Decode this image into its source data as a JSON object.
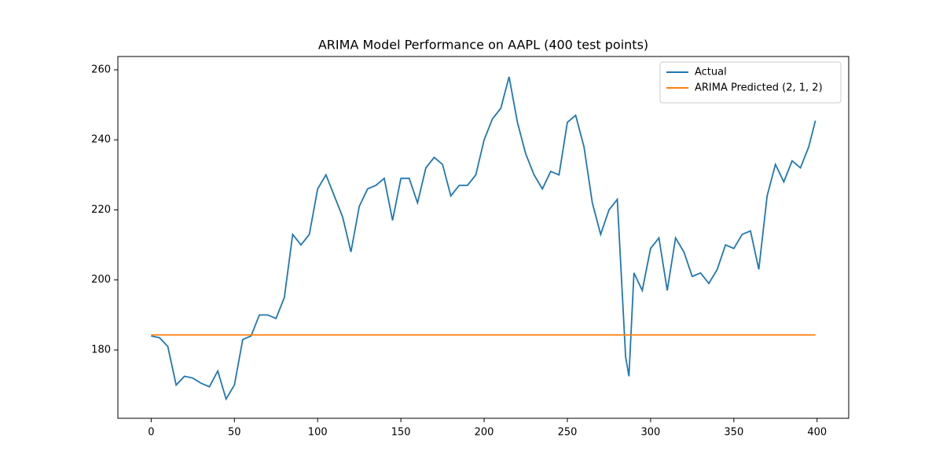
{
  "chart_data": {
    "type": "line",
    "title": "ARIMA Model Performance on AAPL (400 test points)",
    "series": [
      {
        "name": "Actual",
        "color": "#1f77b4",
        "x": [
          0,
          5,
          10,
          15,
          20,
          25,
          30,
          35,
          40,
          45,
          50,
          55,
          60,
          65,
          70,
          75,
          80,
          85,
          90,
          95,
          100,
          105,
          110,
          115,
          120,
          125,
          130,
          135,
          140,
          145,
          150,
          155,
          160,
          165,
          170,
          175,
          180,
          185,
          190,
          195,
          200,
          205,
          210,
          215,
          220,
          225,
          230,
          235,
          240,
          245,
          250,
          255,
          260,
          265,
          270,
          275,
          280,
          285,
          287,
          290,
          295,
          300,
          305,
          310,
          315,
          320,
          325,
          330,
          335,
          340,
          345,
          350,
          355,
          360,
          365,
          370,
          375,
          380,
          385,
          390,
          395,
          399
        ],
        "values": [
          184,
          183.5,
          181,
          170,
          172.5,
          172,
          170.5,
          169.5,
          174,
          166,
          170,
          183,
          184,
          190,
          190,
          189,
          195,
          213,
          210,
          213,
          226,
          230,
          224,
          218,
          208,
          221,
          226,
          227,
          229,
          217,
          229,
          229,
          222,
          232,
          235,
          233,
          224,
          227,
          227,
          230,
          240,
          246,
          249,
          258,
          245,
          236,
          230,
          226,
          231,
          230,
          245,
          247,
          238,
          222,
          213,
          220,
          223,
          178,
          172.5,
          202,
          197,
          209,
          212,
          197,
          212,
          208,
          201,
          202,
          199,
          203,
          210,
          209,
          213,
          214,
          203,
          224,
          233,
          228,
          234,
          232,
          238,
          245.5
        ]
      },
      {
        "name": "ARIMA Predicted (2, 1, 2)",
        "color": "#ff7f0e",
        "x": [
          0,
          399
        ],
        "values": [
          184.3,
          184.3
        ]
      }
    ],
    "xlim": [
      -20,
      419
    ],
    "ylim": [
      160.5,
      263.8
    ],
    "xticks": [
      0,
      50,
      100,
      150,
      200,
      250,
      300,
      350,
      400
    ],
    "yticks": [
      180,
      200,
      220,
      240,
      260
    ],
    "legend": "upper right"
  }
}
